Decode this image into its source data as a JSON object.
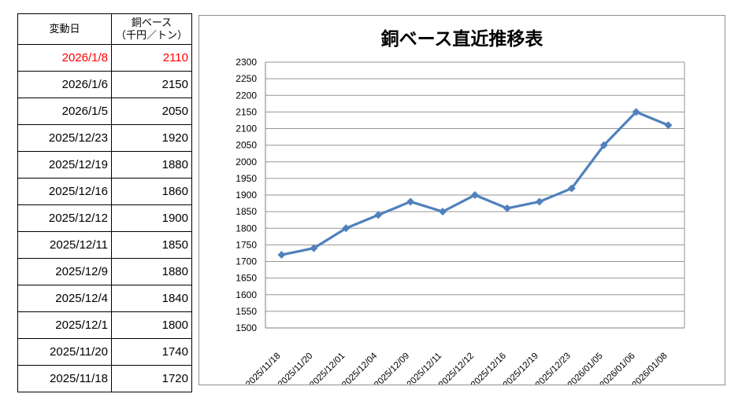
{
  "table": {
    "header_col1": "変動日",
    "header_col2_line1": "銅ベース",
    "header_col2_line2": "（千円／トン）",
    "highlight_color": "#ff0000",
    "rows": [
      {
        "date": "2026/1/8",
        "value": "2110",
        "highlight": true
      },
      {
        "date": "2026/1/6",
        "value": "2150",
        "highlight": false
      },
      {
        "date": "2026/1/5",
        "value": "2050",
        "highlight": false
      },
      {
        "date": "2025/12/23",
        "value": "1920",
        "highlight": false
      },
      {
        "date": "2025/12/19",
        "value": "1880",
        "highlight": false
      },
      {
        "date": "2025/12/16",
        "value": "1860",
        "highlight": false
      },
      {
        "date": "2025/12/12",
        "value": "1900",
        "highlight": false
      },
      {
        "date": "2025/12/11",
        "value": "1850",
        "highlight": false
      },
      {
        "date": "2025/12/9",
        "value": "1880",
        "highlight": false
      },
      {
        "date": "2025/12/4",
        "value": "1840",
        "highlight": false
      },
      {
        "date": "2025/12/1",
        "value": "1800",
        "highlight": false
      },
      {
        "date": "2025/11/20",
        "value": "1740",
        "highlight": false
      },
      {
        "date": "2025/11/18",
        "value": "1720",
        "highlight": false
      }
    ]
  },
  "chart_data": {
    "type": "line",
    "title": "銅ベース直近推移表",
    "categories": [
      "2025/11/18",
      "2025/11/20",
      "2025/12/01",
      "2025/12/04",
      "2025/12/09",
      "2025/12/11",
      "2025/12/12",
      "2025/12/16",
      "2025/12/19",
      "2025/12/23",
      "2026/01/05",
      "2026/01/06",
      "2026/01/08"
    ],
    "values": [
      1720,
      1740,
      1800,
      1840,
      1880,
      1850,
      1900,
      1860,
      1880,
      1920,
      2050,
      2150,
      2110
    ],
    "xlabel": "",
    "ylabel": "",
    "ylim": [
      1500,
      2300
    ],
    "ytick_step": 50,
    "grid": true,
    "legend": "none",
    "line_color": "#4f81bd",
    "marker": "diamond",
    "gridline_color": "#969696",
    "axis_color": "#7f7f7f",
    "tick_label_color": "#000000"
  }
}
